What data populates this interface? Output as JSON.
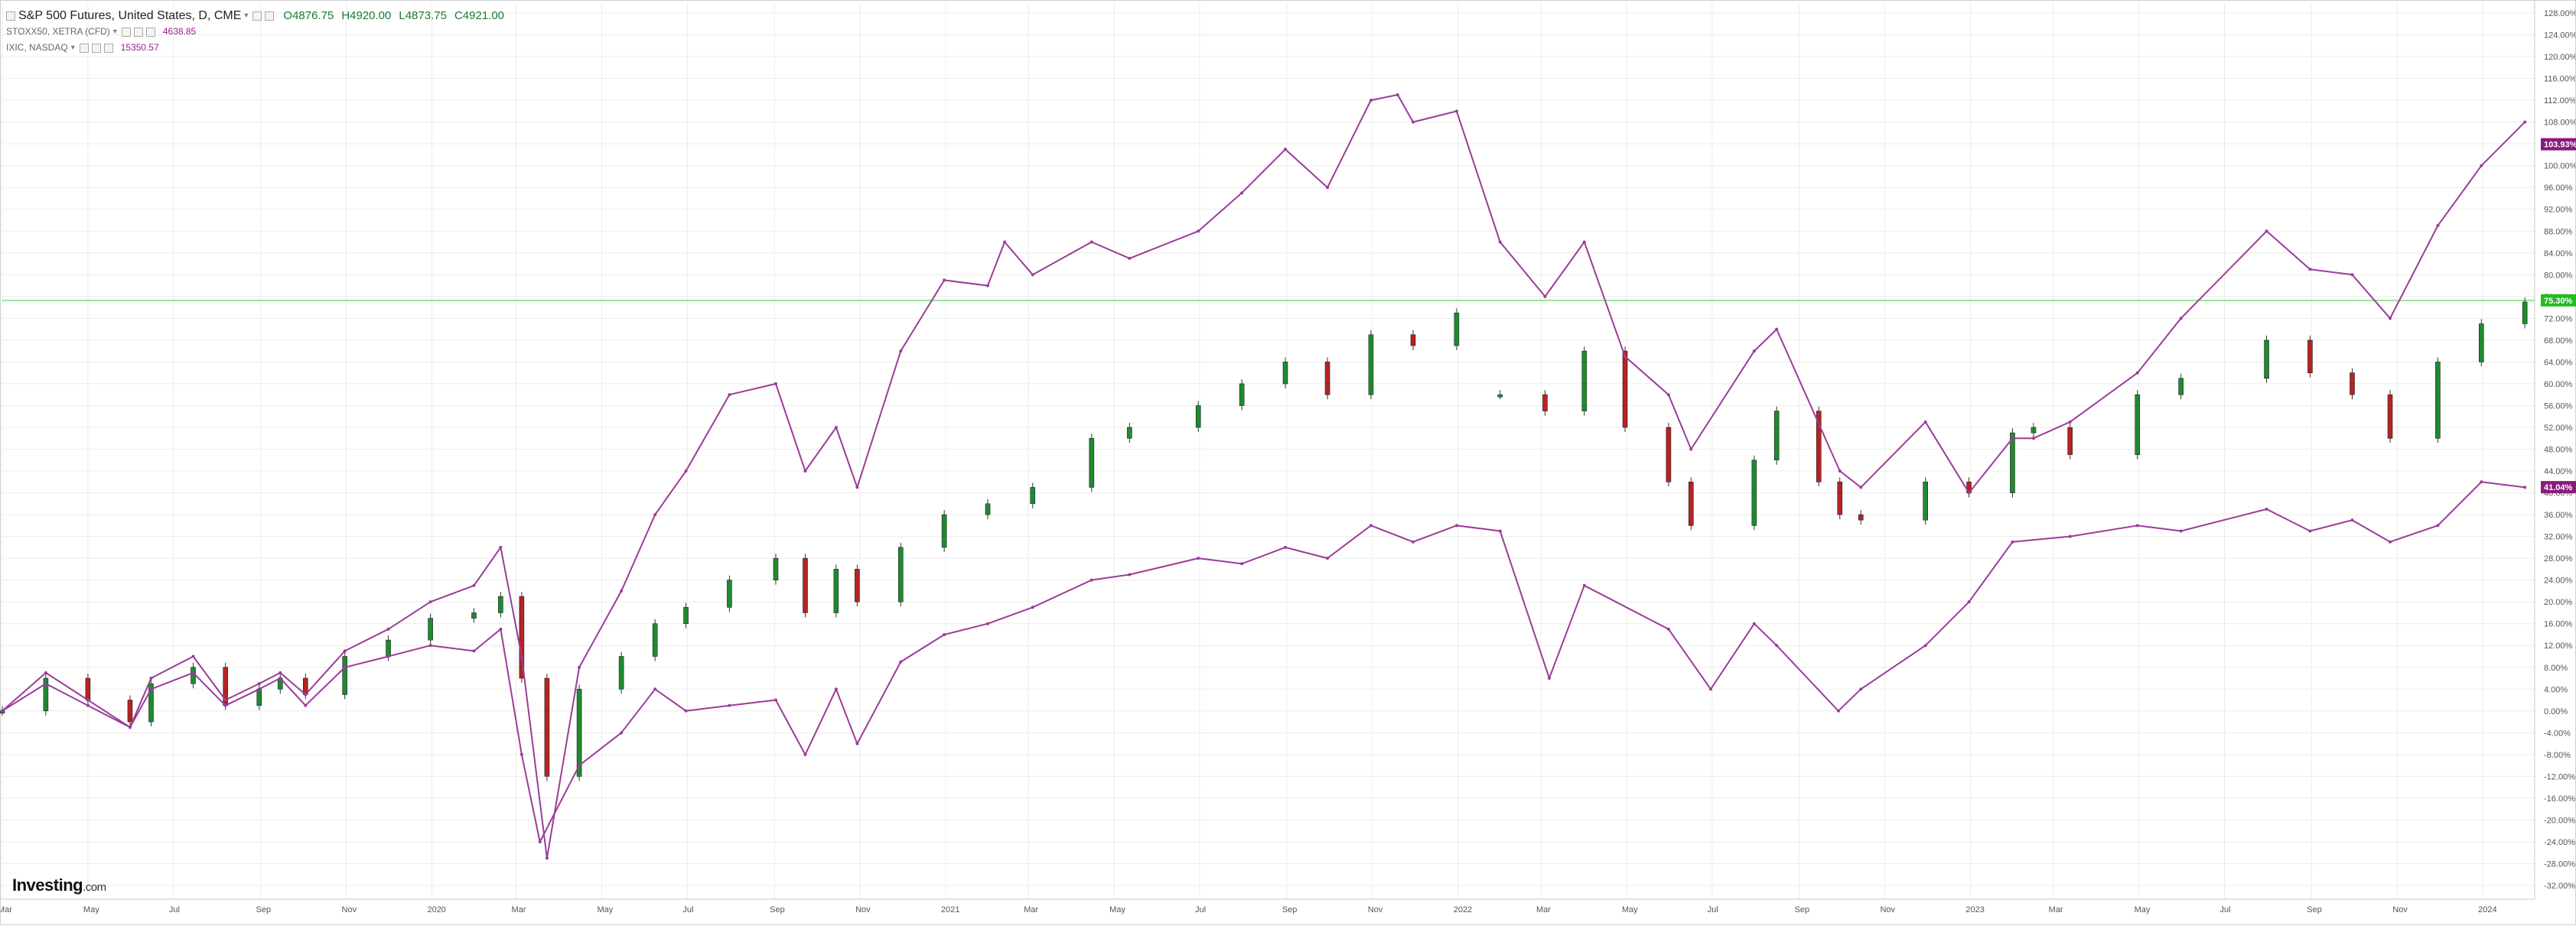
{
  "header": {
    "main_symbol": "S&P 500 Futures, United States, D, CME",
    "ohlc": {
      "open": "O4876.75",
      "high": "H4920.00",
      "low": "L4873.75",
      "close": "C4921.00"
    },
    "overlays": [
      {
        "name": "STOXX50, XETRA (CFD)",
        "value": "4638.85"
      },
      {
        "name": "IXIC, NASDAQ",
        "value": "15350.57"
      }
    ]
  },
  "branding": {
    "logo_text": "Investing",
    "logo_suffix": ".com"
  },
  "colors": {
    "background": "#ffffff",
    "grid": "#ececec",
    "up_candle": "#1f8a2f",
    "down_candle": "#b52323",
    "compare_line": "#9b3c98",
    "reference_line": "#77dd77",
    "badge_green": "#22bb22",
    "badge_purple": "#8a1a7c"
  },
  "chart_data": {
    "type": "line",
    "title": "S&P 500 Futures, United States, D, CME",
    "y_unit": "percent change",
    "ylim": [
      -32,
      128
    ],
    "y_ticks": [
      "128.00%",
      "124.00%",
      "120.00%",
      "116.00%",
      "112.00%",
      "108.00%",
      "104.00%",
      "100.00%",
      "96.00%",
      "92.00%",
      "88.00%",
      "84.00%",
      "80.00%",
      "76.00%",
      "72.00%",
      "68.00%",
      "64.00%",
      "60.00%",
      "56.00%",
      "52.00%",
      "48.00%",
      "44.00%",
      "40.00%",
      "36.00%",
      "32.00%",
      "28.00%",
      "24.00%",
      "20.00%",
      "16.00%",
      "12.00%",
      "8.00%",
      "4.00%",
      "0.00%",
      "-4.00%",
      "-8.00%",
      "-12.00%",
      "-16.00%",
      "-20.00%",
      "-24.00%",
      "-28.00%",
      "-32.00%"
    ],
    "x_range": [
      "2019-03-01",
      "2024-02-01"
    ],
    "x_ticks": [
      {
        "date": "2019-03-01",
        "label": "Mar"
      },
      {
        "date": "2019-05-01",
        "label": "May"
      },
      {
        "date": "2019-07-01",
        "label": "Jul"
      },
      {
        "date": "2019-09-01",
        "label": "Sep"
      },
      {
        "date": "2019-11-01",
        "label": "Nov"
      },
      {
        "date": "2020-01-01",
        "label": "2020"
      },
      {
        "date": "2020-03-01",
        "label": "Mar"
      },
      {
        "date": "2020-05-01",
        "label": "May"
      },
      {
        "date": "2020-07-01",
        "label": "Jul"
      },
      {
        "date": "2020-09-01",
        "label": "Sep"
      },
      {
        "date": "2020-11-01",
        "label": "Nov"
      },
      {
        "date": "2021-01-01",
        "label": "2021"
      },
      {
        "date": "2021-03-01",
        "label": "Mar"
      },
      {
        "date": "2021-05-01",
        "label": "May"
      },
      {
        "date": "2021-07-01",
        "label": "Jul"
      },
      {
        "date": "2021-09-01",
        "label": "Sep"
      },
      {
        "date": "2021-11-01",
        "label": "Nov"
      },
      {
        "date": "2022-01-01",
        "label": "2022"
      },
      {
        "date": "2022-03-01",
        "label": "Mar"
      },
      {
        "date": "2022-05-01",
        "label": "May"
      },
      {
        "date": "2022-07-01",
        "label": "Jul"
      },
      {
        "date": "2022-09-01",
        "label": "Sep"
      },
      {
        "date": "2022-11-01",
        "label": "Nov"
      },
      {
        "date": "2023-01-01",
        "label": "2023"
      },
      {
        "date": "2023-03-01",
        "label": "Mar"
      },
      {
        "date": "2023-05-01",
        "label": "May"
      },
      {
        "date": "2023-07-01",
        "label": "Jul"
      },
      {
        "date": "2023-09-01",
        "label": "Sep"
      },
      {
        "date": "2023-11-01",
        "label": "Nov"
      },
      {
        "date": "2024-01-01",
        "label": "2024"
      }
    ],
    "grid": true,
    "reference_line": {
      "y": 75.3
    },
    "series": [
      {
        "name": "S&P 500 Futures, United States, D, CME",
        "style": "candles",
        "color_key": "up_candle",
        "x": [
          "2019-03-01",
          "2019-04-01",
          "2019-05-01",
          "2019-05-31",
          "2019-06-15",
          "2019-07-15",
          "2019-08-07",
          "2019-08-31",
          "2019-09-15",
          "2019-10-03",
          "2019-10-31",
          "2019-12-01",
          "2019-12-31",
          "2020-01-31",
          "2020-02-19",
          "2020-03-05",
          "2020-03-23",
          "2020-04-15",
          "2020-05-15",
          "2020-06-08",
          "2020-06-30",
          "2020-07-31",
          "2020-09-02",
          "2020-09-23",
          "2020-10-15",
          "2020-10-30",
          "2020-11-30",
          "2020-12-31",
          "2021-01-31",
          "2021-03-04",
          "2021-04-15",
          "2021-05-12",
          "2021-06-30",
          "2021-07-31",
          "2021-08-31",
          "2021-09-30",
          "2021-10-31",
          "2021-11-30",
          "2021-12-31"
        ],
        "values": [
          0,
          6,
          2,
          -2,
          5,
          8,
          1,
          4,
          6,
          3,
          10,
          13,
          17,
          18,
          21,
          6,
          -12,
          4,
          10,
          16,
          19,
          24,
          28,
          18,
          26,
          20,
          30,
          36,
          38,
          41,
          50,
          52,
          56,
          60,
          64,
          58,
          69,
          67,
          73
        ]
      },
      {
        "name": "S&P 500 Futures, United States, D, CME (sparse)",
        "style": "candles",
        "color_key": "up_candle",
        "x": [
          "2022-01-31",
          "2022-03-04",
          "2022-04-01",
          "2022-04-30",
          "2022-05-31",
          "2022-06-16",
          "2022-07-31",
          "2022-08-16",
          "2022-09-15",
          "2022-09-30",
          "2022-10-15",
          "2022-11-30",
          "2022-12-31",
          "2023-01-31",
          "2023-02-15",
          "2023-03-13",
          "2023-04-30",
          "2023-05-31",
          "2023-07-31",
          "2023-08-31",
          "2023-09-30",
          "2023-10-27",
          "2023-11-30",
          "2023-12-31",
          "2024-01-31"
        ],
        "values": [
          58,
          55,
          66,
          52,
          42,
          34,
          46,
          55,
          42,
          36,
          35,
          42,
          40,
          51,
          52,
          47,
          58,
          61,
          68,
          62,
          58,
          50,
          64,
          71,
          75
        ]
      },
      {
        "name": "IXIC, NASDAQ",
        "style": "line",
        "color_key": "compare_line",
        "x": [
          "2019-03-01",
          "2019-04-01",
          "2019-05-01",
          "2019-05-31",
          "2019-06-15",
          "2019-07-15",
          "2019-08-07",
          "2019-08-31",
          "2019-09-15",
          "2019-10-03",
          "2019-10-31",
          "2019-12-01",
          "2019-12-31",
          "2020-01-31",
          "2020-02-19",
          "2020-03-05",
          "2020-03-23",
          "2020-04-15",
          "2020-05-15",
          "2020-06-08",
          "2020-06-30",
          "2020-07-31",
          "2020-09-02",
          "2020-09-23",
          "2020-10-15",
          "2020-10-30",
          "2020-11-30",
          "2020-12-31",
          "2021-01-31",
          "2021-02-12",
          "2021-03-04",
          "2021-04-15",
          "2021-05-12",
          "2021-06-30",
          "2021-07-31",
          "2021-08-31",
          "2021-09-30",
          "2021-10-31",
          "2021-11-19",
          "2021-11-30",
          "2021-12-31",
          "2022-01-31",
          "2022-03-04",
          "2022-04-01",
          "2022-04-30",
          "2022-05-31",
          "2022-06-16",
          "2022-07-31",
          "2022-08-16",
          "2022-09-30",
          "2022-10-15",
          "2022-11-30",
          "2022-12-31",
          "2023-01-31",
          "2023-02-15",
          "2023-03-13",
          "2023-04-30",
          "2023-05-31",
          "2023-07-31",
          "2023-08-31",
          "2023-09-30",
          "2023-10-27",
          "2023-11-30",
          "2023-12-31",
          "2024-01-31"
        ],
        "values": [
          0,
          7,
          2,
          -3,
          6,
          10,
          2,
          5,
          7,
          3,
          11,
          15,
          20,
          23,
          30,
          10,
          -27,
          8,
          22,
          36,
          44,
          58,
          60,
          44,
          52,
          41,
          66,
          79,
          78,
          86,
          80,
          86,
          83,
          88,
          95,
          103,
          96,
          112,
          113,
          108,
          110,
          86,
          76,
          86,
          65,
          58,
          48,
          66,
          70,
          44,
          41,
          53,
          40,
          50,
          50,
          53,
          62,
          72,
          88,
          81,
          80,
          72,
          89,
          100,
          108
        ]
      },
      {
        "name": "STOXX50, XETRA (CFD)",
        "style": "line",
        "color_key": "compare_line",
        "x": [
          "2019-03-01",
          "2019-04-01",
          "2019-05-01",
          "2019-05-31",
          "2019-06-15",
          "2019-07-15",
          "2019-08-07",
          "2019-08-31",
          "2019-09-15",
          "2019-10-03",
          "2019-10-31",
          "2019-12-01",
          "2019-12-31",
          "2020-01-31",
          "2020-02-19",
          "2020-03-05",
          "2020-03-18",
          "2020-04-15",
          "2020-05-15",
          "2020-06-08",
          "2020-06-30",
          "2020-07-31",
          "2020-09-02",
          "2020-09-23",
          "2020-10-15",
          "2020-10-30",
          "2020-11-30",
          "2020-12-31",
          "2021-01-31",
          "2021-03-04",
          "2021-04-15",
          "2021-05-12",
          "2021-06-30",
          "2021-07-31",
          "2021-08-31",
          "2021-09-30",
          "2021-10-31",
          "2021-11-30",
          "2021-12-31",
          "2022-01-31",
          "2022-03-07",
          "2022-04-01",
          "2022-05-31",
          "2022-06-30",
          "2022-07-31",
          "2022-08-16",
          "2022-09-29",
          "2022-10-15",
          "2022-11-30",
          "2022-12-31",
          "2023-01-31",
          "2023-03-13",
          "2023-04-30",
          "2023-05-31",
          "2023-07-31",
          "2023-08-31",
          "2023-09-30",
          "2023-10-27",
          "2023-11-30",
          "2023-12-31",
          "2024-01-31"
        ],
        "values": [
          0,
          5,
          1,
          -3,
          4,
          7,
          1,
          4,
          6,
          1,
          8,
          10,
          12,
          11,
          15,
          -8,
          -24,
          -10,
          -4,
          4,
          0,
          1,
          2,
          -8,
          4,
          -6,
          9,
          14,
          16,
          19,
          24,
          25,
          28,
          27,
          30,
          28,
          34,
          31,
          34,
          33,
          6,
          23,
          15,
          4,
          16,
          12,
          0,
          4,
          12,
          20,
          31,
          32,
          34,
          33,
          37,
          33,
          35,
          31,
          34,
          42,
          41
        ]
      }
    ],
    "badges": [
      {
        "label": "103.93%",
        "y": 103.93,
        "color_key": "badge_purple"
      },
      {
        "label": "75.30%",
        "y": 75.3,
        "color_key": "badge_green"
      },
      {
        "label": "41.04%",
        "y": 41.04,
        "color_key": "badge_purple"
      }
    ]
  }
}
